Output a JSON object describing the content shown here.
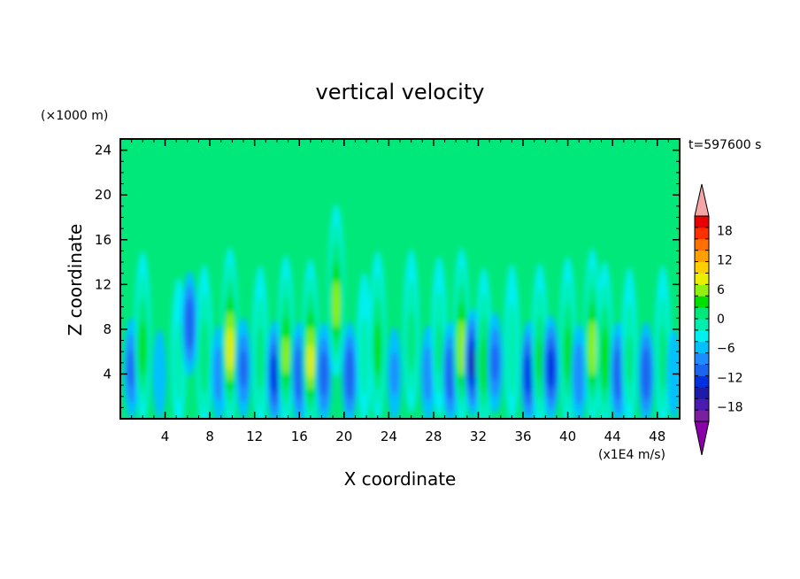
{
  "chart_data": {
    "type": "heatmap",
    "title": "vertical velocity",
    "xlabel": "X coordinate",
    "ylabel": "Z coordinate",
    "y_unit_note": "(×1000 m)",
    "time_label": "t=597600 s",
    "colorbar_unit": "(x1E4 m/s)",
    "xlim": [
      0,
      50
    ],
    "ylim": [
      0,
      25
    ],
    "x_ticks": [
      4,
      8,
      12,
      16,
      20,
      24,
      28,
      32,
      36,
      40,
      44,
      48
    ],
    "y_ticks": [
      4,
      8,
      12,
      16,
      20,
      24
    ],
    "colorbar": {
      "range": [
        -21,
        21
      ],
      "step": 3,
      "tick_values": [
        18,
        12,
        6,
        0,
        -6,
        -12,
        -18
      ],
      "tick_labels": [
        "18",
        "12",
        "6",
        "0",
        "−6",
        "−12",
        "−18"
      ],
      "colors": [
        "#7a1fa0",
        "#4b1ab0",
        "#1c1ca8",
        "#0030e0",
        "#1a64f0",
        "#1e8cff",
        "#00c0ff",
        "#00f0f0",
        "#00efb0",
        "#00e87a",
        "#00e000",
        "#90f010",
        "#e8f000",
        "#ffd000",
        "#ffa000",
        "#ff7000",
        "#ff3000",
        "#e80000"
      ],
      "over_color": "#f4a6a6",
      "under_color": "#8a00a8"
    },
    "features": [
      {
        "x": 1.0,
        "z": 4.5,
        "w": -8
      },
      {
        "x": 2.0,
        "z": 6.0,
        "w": 12
      },
      {
        "x": 3.5,
        "z": 4.0,
        "w": -4
      },
      {
        "x": 5.2,
        "z": 4.5,
        "w": 6
      },
      {
        "x": 6.2,
        "z": 8.5,
        "w": -10
      },
      {
        "x": 7.5,
        "z": 5.0,
        "w": 10
      },
      {
        "x": 8.8,
        "z": 4.0,
        "w": -6
      },
      {
        "x": 9.8,
        "z": 6.0,
        "w": 18
      },
      {
        "x": 11.0,
        "z": 4.5,
        "w": -8
      },
      {
        "x": 12.5,
        "z": 5.0,
        "w": 9
      },
      {
        "x": 13.8,
        "z": 4.0,
        "w": -12
      },
      {
        "x": 14.8,
        "z": 5.5,
        "w": 14
      },
      {
        "x": 16.0,
        "z": 4.0,
        "w": -10
      },
      {
        "x": 17.0,
        "z": 5.0,
        "w": 17
      },
      {
        "x": 18.2,
        "z": 4.0,
        "w": -9
      },
      {
        "x": 19.3,
        "z": 10.0,
        "w": 15
      },
      {
        "x": 20.5,
        "z": 4.0,
        "w": -10
      },
      {
        "x": 21.8,
        "z": 5.0,
        "w": 6
      },
      {
        "x": 23.0,
        "z": 6.0,
        "w": 12
      },
      {
        "x": 24.5,
        "z": 4.0,
        "w": -5
      },
      {
        "x": 26.0,
        "z": 6.5,
        "w": 9
      },
      {
        "x": 27.5,
        "z": 4.0,
        "w": -6
      },
      {
        "x": 28.5,
        "z": 6.0,
        "w": 8
      },
      {
        "x": 29.5,
        "z": 4.0,
        "w": -10
      },
      {
        "x": 30.5,
        "z": 6.0,
        "w": 16
      },
      {
        "x": 31.5,
        "z": 5.0,
        "w": -14
      },
      {
        "x": 32.5,
        "z": 4.5,
        "w": 12
      },
      {
        "x": 33.5,
        "z": 5.0,
        "w": -8
      },
      {
        "x": 35.0,
        "z": 5.5,
        "w": 7
      },
      {
        "x": 36.5,
        "z": 4.0,
        "w": -12
      },
      {
        "x": 37.5,
        "z": 5.0,
        "w": 11
      },
      {
        "x": 38.5,
        "z": 4.5,
        "w": -12
      },
      {
        "x": 40.0,
        "z": 5.5,
        "w": 12
      },
      {
        "x": 41.0,
        "z": 4.0,
        "w": -7
      },
      {
        "x": 42.2,
        "z": 6.0,
        "w": 16
      },
      {
        "x": 43.3,
        "z": 5.0,
        "w": 13
      },
      {
        "x": 44.5,
        "z": 4.0,
        "w": -10
      },
      {
        "x": 45.5,
        "z": 5.0,
        "w": 8
      },
      {
        "x": 47.0,
        "z": 4.0,
        "w": -10
      },
      {
        "x": 48.5,
        "z": 5.0,
        "w": 9
      },
      {
        "x": 49.5,
        "z": 4.0,
        "w": -4
      }
    ]
  }
}
